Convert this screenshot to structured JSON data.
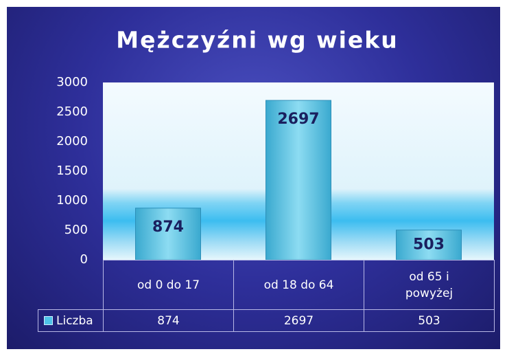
{
  "chart_data": {
    "type": "bar",
    "title": "Mężczyźni wg wieku",
    "categories": [
      "od 0 do 17",
      "od 18 do 64",
      "od 65 i powyżej"
    ],
    "series": [
      {
        "name": "Liczba",
        "color": "#4fc3e8",
        "values": [
          874,
          2697,
          503
        ]
      }
    ],
    "ylim": [
      0,
      3000
    ],
    "yticks": [
      0,
      500,
      1000,
      1500,
      2000,
      2500,
      3000
    ],
    "grid": false,
    "legend": "data-table"
  }
}
